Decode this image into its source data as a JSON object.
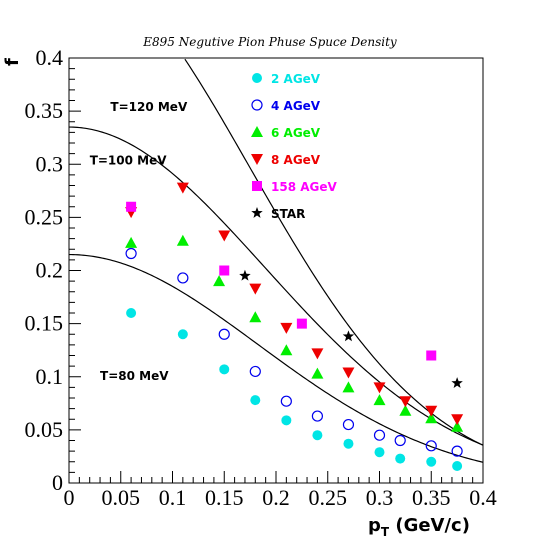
{
  "chart_data": {
    "type": "scatter",
    "title": "E895 Negutive Pion Phuse Spuce Density",
    "ylabel": "f",
    "xlabel": "p",
    "xlabel_sub": "T",
    "xlabel_unit": " (GeV/c)",
    "xlim": [
      0,
      0.4
    ],
    "ylim": [
      0,
      0.4
    ],
    "x_ticks": [
      0,
      0.05,
      0.1,
      0.15,
      0.2,
      0.25,
      0.3,
      0.35,
      0.4
    ],
    "x_tick_labels": [
      "0",
      "0.05",
      "0.1",
      "0.15",
      "0.2",
      "0.25",
      "0.3",
      "0.35",
      "0.4"
    ],
    "y_ticks": [
      0,
      0.05,
      0.1,
      0.15,
      0.2,
      0.25,
      0.3,
      0.35,
      0.4
    ],
    "y_tick_labels": [
      "0",
      "0.05",
      "0.1",
      "0.15",
      "0.2",
      "0.25",
      "0.3",
      "0.35",
      "0.4"
    ],
    "grid": false,
    "legend_position": "top-right",
    "series": [
      {
        "name": "2 AGeV",
        "color": "#00e5e5",
        "marker": "filled-circle",
        "x": [
          0.06,
          0.11,
          0.15,
          0.18,
          0.21,
          0.24,
          0.27,
          0.3,
          0.32,
          0.35,
          0.375
        ],
        "y": [
          0.16,
          0.14,
          0.107,
          0.078,
          0.059,
          0.045,
          0.037,
          0.029,
          0.023,
          0.02,
          0.016
        ]
      },
      {
        "name": "4 AGeV",
        "color": "#0000ee",
        "marker": "open-circle",
        "x": [
          0.06,
          0.11,
          0.15,
          0.18,
          0.21,
          0.24,
          0.27,
          0.3,
          0.32,
          0.35,
          0.375
        ],
        "y": [
          0.216,
          0.193,
          0.14,
          0.105,
          0.077,
          0.063,
          0.055,
          0.045,
          0.04,
          0.035,
          0.03
        ]
      },
      {
        "name": "6 AGeV",
        "color": "#00ee00",
        "marker": "triangle-up",
        "x": [
          0.06,
          0.11,
          0.145,
          0.18,
          0.21,
          0.24,
          0.27,
          0.3,
          0.325,
          0.35,
          0.375
        ],
        "y": [
          0.226,
          0.228,
          0.19,
          0.156,
          0.125,
          0.103,
          0.09,
          0.078,
          0.068,
          0.061,
          0.053
        ]
      },
      {
        "name": "8 AGeV",
        "color": "#ee0000",
        "marker": "triangle-down",
        "x": [
          0.06,
          0.11,
          0.15,
          0.18,
          0.21,
          0.24,
          0.27,
          0.3,
          0.325,
          0.35,
          0.375
        ],
        "y": [
          0.255,
          0.278,
          0.233,
          0.183,
          0.146,
          0.122,
          0.104,
          0.09,
          0.077,
          0.068,
          0.06
        ]
      },
      {
        "name": "158 AGeV",
        "color": "#ff00ff",
        "marker": "square",
        "x": [
          0.06,
          0.15,
          0.225,
          0.35
        ],
        "y": [
          0.26,
          0.2,
          0.15,
          0.12
        ]
      },
      {
        "name": "STAR",
        "color": "#000000",
        "marker": "star",
        "x": [
          0.17,
          0.27,
          0.375
        ],
        "y": [
          0.195,
          0.138,
          0.094
        ]
      }
    ],
    "curves": [
      {
        "label": "T=120 MeV",
        "label_at": [
          0.04,
          0.35
        ],
        "f0": 0.49,
        "a": 16.4
      },
      {
        "label": "T=100 MeV",
        "label_at": [
          0.02,
          0.3
        ],
        "f0": 0.335,
        "a": 14.0
      },
      {
        "label": "T=80 MeV",
        "label_at": [
          0.03,
          0.097
        ],
        "f0": 0.215,
        "a": 15.0
      }
    ]
  }
}
